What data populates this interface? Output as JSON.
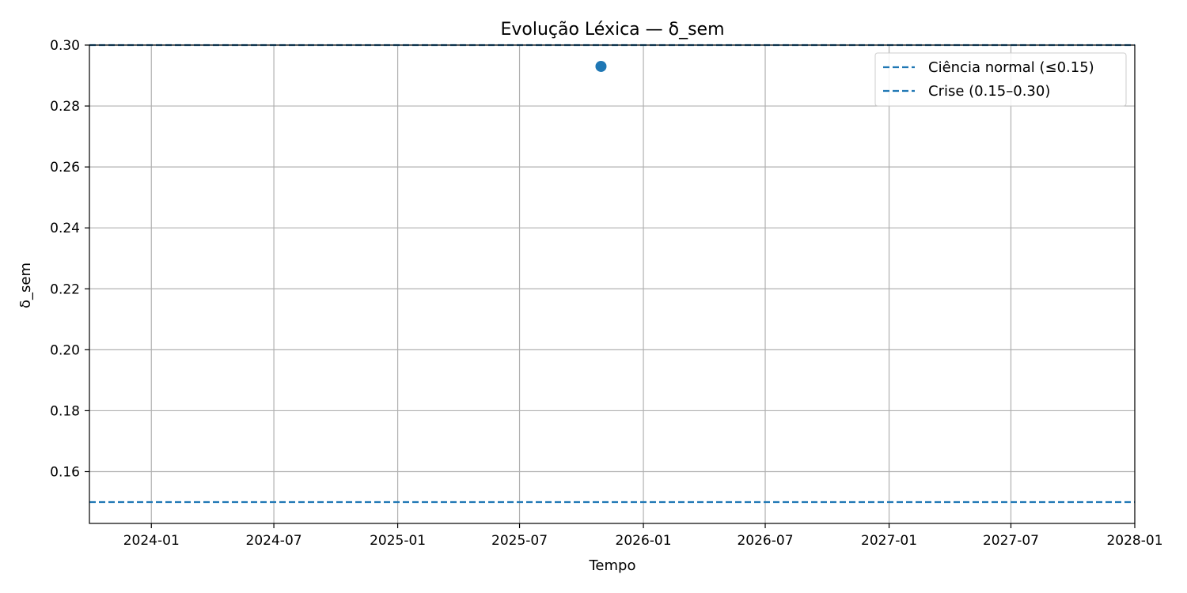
{
  "chart_data": {
    "type": "scatter",
    "title": "Evolução Léxica — δ_sem",
    "xlabel": "Tempo",
    "ylabel": "δ_sem",
    "x_type": "date",
    "xlim": [
      "2023-10-01",
      "2028-01-01"
    ],
    "ylim": [
      0.143,
      0.3
    ],
    "x_ticks": [
      "2024-01",
      "2024-07",
      "2025-01",
      "2025-07",
      "2026-01",
      "2026-07",
      "2027-01",
      "2027-07",
      "2028-01"
    ],
    "y_ticks": [
      "0.16",
      "0.18",
      "0.20",
      "0.22",
      "0.24",
      "0.26",
      "0.28",
      "0.30"
    ],
    "grid": true,
    "legend_position": "top-right",
    "colors": {
      "series": "#1f77b4",
      "grid": "#b0b0b0"
    },
    "points": [
      {
        "x": "2025-10-30",
        "y": 0.293
      }
    ],
    "reference_lines": [
      {
        "label": "Ciência normal (≤0.15)",
        "y": 0.15,
        "style": "dashed"
      },
      {
        "label": "Crise (0.15–0.30)",
        "y": 0.3,
        "style": "dashed"
      }
    ]
  }
}
